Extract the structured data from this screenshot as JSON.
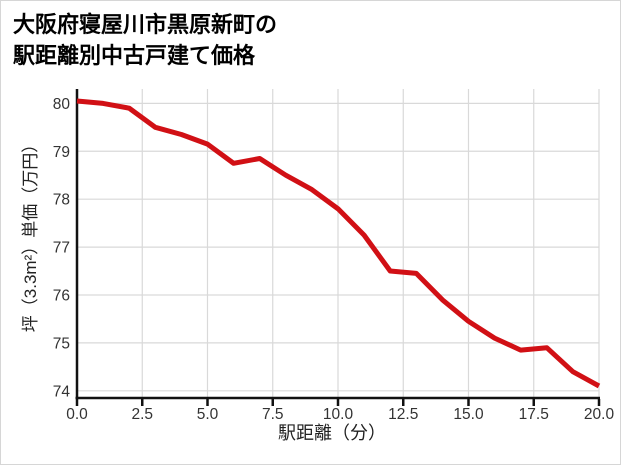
{
  "title": {
    "line1": "大阪府寝屋川市黒原新町の",
    "line2": "駅距離別中古戸建て価格"
  },
  "colors": {
    "line": "#d11015",
    "grid": "#d9d9d9",
    "axis": "#111111",
    "tick_text": "#333333",
    "label_text": "#222222"
  },
  "chart_data": {
    "type": "line",
    "title": "大阪府寝屋川市黒原新町の駅距離別中古戸建て価格",
    "xlabel": "駅距離（分）",
    "ylabel": "坪（3.3m²）単価（万円）",
    "x": [
      0,
      1,
      2,
      3,
      4,
      5,
      6,
      7,
      8,
      9,
      10,
      11,
      12,
      13,
      14,
      15,
      16,
      17,
      18,
      19,
      20
    ],
    "values": [
      80.05,
      80.0,
      79.9,
      79.5,
      79.35,
      79.15,
      78.75,
      78.85,
      78.5,
      78.2,
      77.8,
      77.25,
      76.5,
      76.45,
      75.9,
      75.45,
      75.1,
      74.85,
      74.9,
      74.4,
      74.1
    ],
    "xlim": [
      0,
      20
    ],
    "ylim": [
      73.85,
      80.3
    ],
    "xticks": [
      "0.0",
      "2.5",
      "5.0",
      "7.5",
      "10.0",
      "12.5",
      "15.0",
      "17.5",
      "20.0"
    ],
    "yticks": [
      "80",
      "79",
      "78",
      "77",
      "76",
      "75",
      "74"
    ],
    "grid": true,
    "legend": "none"
  }
}
